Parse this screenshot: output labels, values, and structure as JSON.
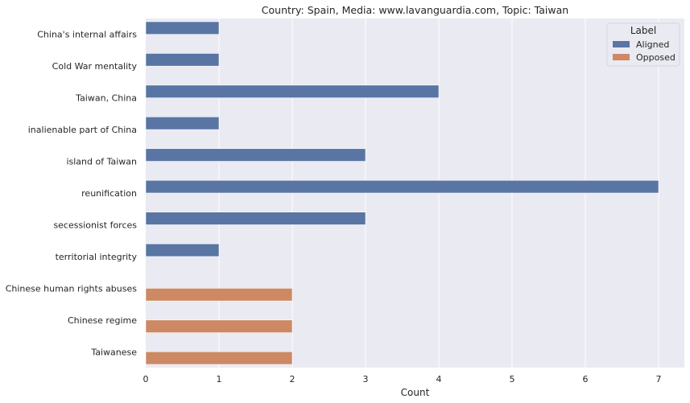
{
  "chart_data": {
    "type": "bar",
    "orientation": "horizontal",
    "title": "Country: Spain, Media: www.lavanguardia.com, Topic: Taiwan",
    "xlabel": "Count",
    "ylabel": "",
    "xlim": [
      0,
      7.35
    ],
    "xticks": [
      0,
      1,
      2,
      3,
      4,
      5,
      6,
      7
    ],
    "grid": true,
    "categories": [
      "China's internal affairs",
      "Cold War mentality",
      "Taiwan, China",
      "inalienable part of China",
      "island of Taiwan",
      "reunification",
      "secessionist forces",
      "territorial integrity",
      "Chinese human rights abuses",
      "Chinese regime",
      "Taiwanese"
    ],
    "series": [
      {
        "name": "Aligned",
        "color": "#5875a4",
        "values": [
          1,
          1,
          4,
          1,
          3,
          7,
          3,
          1,
          null,
          null,
          null
        ]
      },
      {
        "name": "Opposed",
        "color": "#cc8963",
        "values": [
          null,
          null,
          null,
          null,
          null,
          null,
          null,
          null,
          2,
          2,
          2
        ]
      }
    ],
    "legend": {
      "title": "Label",
      "position": "top-right"
    }
  }
}
